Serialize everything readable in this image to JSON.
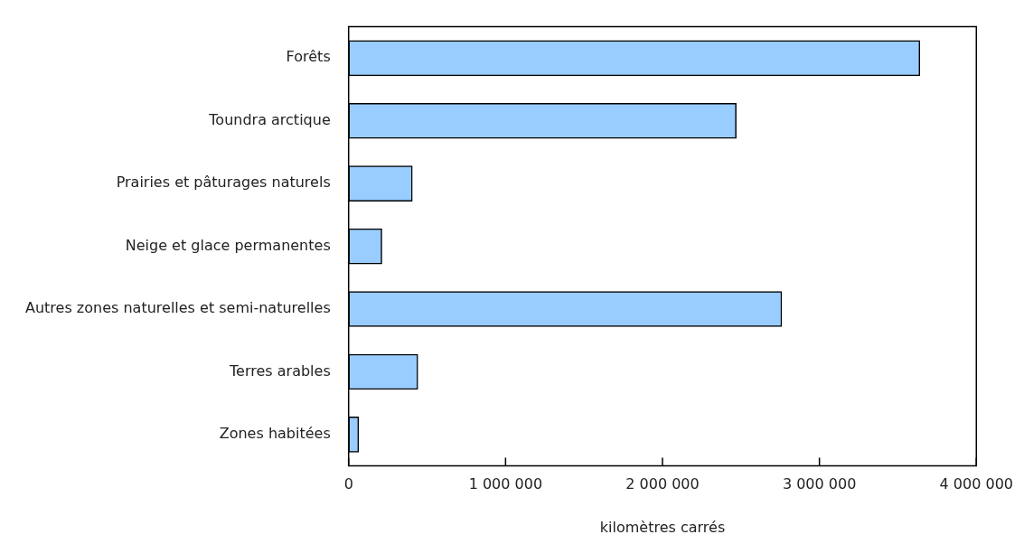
{
  "chart_data": {
    "type": "bar",
    "orientation": "horizontal",
    "xlabel": "kilomètres carrés",
    "categories": [
      "Forêts",
      "Toundra arctique",
      "Prairies et pâturages naturels",
      "Neige et glace permanentes",
      "Autres zones naturelles et semi-naturelles",
      "Terres arables",
      "Zones habitées"
    ],
    "values": [
      3640000,
      2470000,
      406000,
      212000,
      2760000,
      441000,
      64000
    ],
    "color": "#99ccff",
    "xlim": [
      0,
      4000000
    ],
    "xticks": [
      0,
      {
        "value": 1000000,
        "label": "1 000 000"
      },
      {
        "value": 2000000,
        "label": "2 000 000"
      },
      {
        "value": 3000000,
        "label": "3 000 000"
      },
      {
        "value": 4000000,
        "label": "4 000 000"
      }
    ],
    "grid": false,
    "legend": false
  }
}
